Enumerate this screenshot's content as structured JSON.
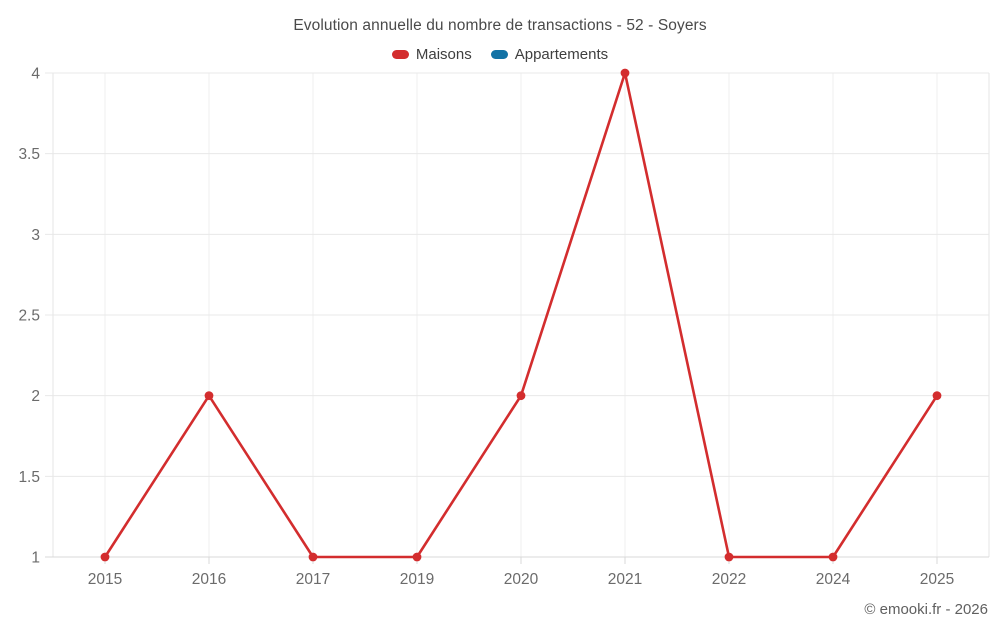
{
  "header": {
    "title": "Evolution annuelle du nombre de transactions - 52 - Soyers"
  },
  "chart_data": {
    "type": "line",
    "title": "Evolution annuelle du nombre de transactions - 52 - Soyers",
    "categories": [
      "2015",
      "2016",
      "2017",
      "2019",
      "2020",
      "2021",
      "2022",
      "2024",
      "2025"
    ],
    "series": [
      {
        "name": "Maisons",
        "color": "#d32d2e",
        "values": [
          1,
          2,
          1,
          1,
          2,
          4,
          1,
          1,
          2
        ]
      },
      {
        "name": "Appartements",
        "color": "#1272a5",
        "values": []
      }
    ],
    "xlabel": "",
    "ylabel": "",
    "ylim": [
      1,
      4
    ],
    "yticks": [
      1,
      1.5,
      2,
      2.5,
      3,
      3.5,
      4
    ],
    "grid": true,
    "legend_position": "top"
  },
  "footer": {
    "text": "© emooki.fr - 2026"
  },
  "colors": {
    "maisons": "#d32d2e",
    "appartements": "#1272a5",
    "gridline": "#ececec",
    "axis_line": "#d9d9d9",
    "tick_text": "#6b6b6b",
    "title_text": "#4a4a4a"
  }
}
